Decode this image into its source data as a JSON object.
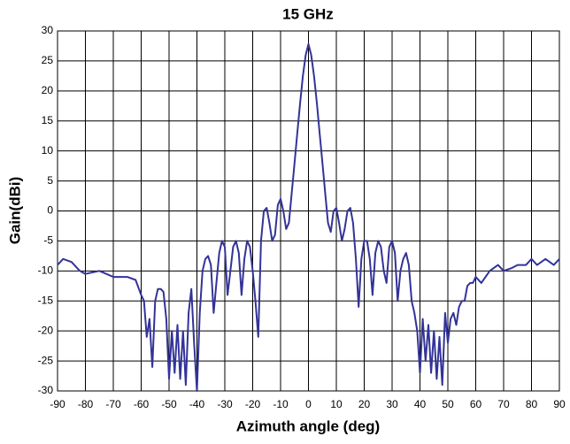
{
  "chart_data": {
    "type": "line",
    "title": "15 GHz",
    "x_label": "Azimuth angle (deg)",
    "y_label": "Gain(dBi)",
    "xlim": [
      -90,
      90
    ],
    "xticks": [
      -90,
      -80,
      -70,
      -60,
      -50,
      -40,
      -30,
      -20,
      -10,
      0,
      10,
      20,
      30,
      40,
      50,
      60,
      70,
      80,
      90
    ],
    "ylim": [
      -30,
      30
    ],
    "yticks": [
      -30,
      -25,
      -20,
      -15,
      -10,
      -5,
      0,
      5,
      10,
      15,
      20,
      25,
      30
    ],
    "grid": true,
    "x": [
      -90,
      -88,
      -85,
      -82,
      -80,
      -75,
      -70,
      -65,
      -62,
      -60,
      -59,
      -58,
      -57,
      -56,
      -55,
      -54,
      -53,
      -52,
      -51,
      -50,
      -49,
      -48,
      -47,
      -46,
      -45,
      -44,
      -43,
      -42,
      -41,
      -40,
      -39,
      -38,
      -37,
      -36,
      -35,
      -34,
      -33,
      -32,
      -31,
      -30,
      -29,
      -28,
      -27,
      -26,
      -25,
      -24,
      -23,
      -22,
      -21,
      -20,
      -19,
      -18,
      -17,
      -16,
      -15,
      -14,
      -13,
      -12,
      -11,
      -10,
      -9,
      -8,
      -7,
      -6,
      -5,
      -4,
      -3,
      -2,
      -1,
      0,
      1,
      2,
      3,
      4,
      5,
      6,
      7,
      8,
      9,
      10,
      11,
      12,
      13,
      14,
      15,
      16,
      17,
      18,
      19,
      20,
      21,
      22,
      23,
      24,
      25,
      26,
      27,
      28,
      29,
      30,
      31,
      32,
      33,
      34,
      35,
      36,
      37,
      38,
      39,
      40,
      41,
      42,
      43,
      44,
      45,
      46,
      47,
      48,
      49,
      50,
      51,
      52,
      53,
      54,
      55,
      56,
      57,
      58,
      59,
      60,
      62,
      65,
      68,
      70,
      73,
      75,
      78,
      80,
      82,
      85,
      88,
      90
    ],
    "series": [
      {
        "color": "#333399",
        "values": [
          -9,
          -8,
          -8.5,
          -10,
          -10.5,
          -10,
          -11,
          -11,
          -11.5,
          -14,
          -15,
          -21,
          -18,
          -26,
          -15,
          -13,
          -13,
          -13.5,
          -18,
          -28,
          -20,
          -27,
          -19,
          -28,
          -20,
          -29,
          -17,
          -13,
          -22,
          -30,
          -17,
          -10,
          -8,
          -7.5,
          -9,
          -17,
          -12,
          -7,
          -5,
          -6,
          -14,
          -10,
          -6,
          -5,
          -7,
          -14,
          -8,
          -5,
          -6,
          -10,
          -15,
          -21,
          -5,
          0,
          0.5,
          -2,
          -5,
          -4,
          1,
          2,
          0,
          -3,
          -2,
          3,
          8,
          13,
          18,
          22.5,
          26,
          27.8,
          26,
          22.5,
          18,
          13,
          8,
          3,
          -2,
          -3.5,
          0,
          0.5,
          -2,
          -5,
          -3,
          0,
          0.5,
          -2,
          -8,
          -16,
          -8,
          -5,
          -5,
          -8,
          -14,
          -7,
          -5,
          -6,
          -10,
          -12,
          -6,
          -5,
          -7,
          -15,
          -10,
          -8,
          -7,
          -9,
          -15,
          -17,
          -20,
          -27,
          -18,
          -25,
          -19,
          -27,
          -20,
          -28,
          -21,
          -29,
          -17,
          -22,
          -18,
          -17,
          -19,
          -16,
          -15,
          -15,
          -12.5,
          -12,
          -12,
          -11,
          -12,
          -10,
          -9,
          -10,
          -9.5,
          -9,
          -9,
          -8,
          -9,
          -8,
          -9,
          -8
        ]
      }
    ]
  }
}
